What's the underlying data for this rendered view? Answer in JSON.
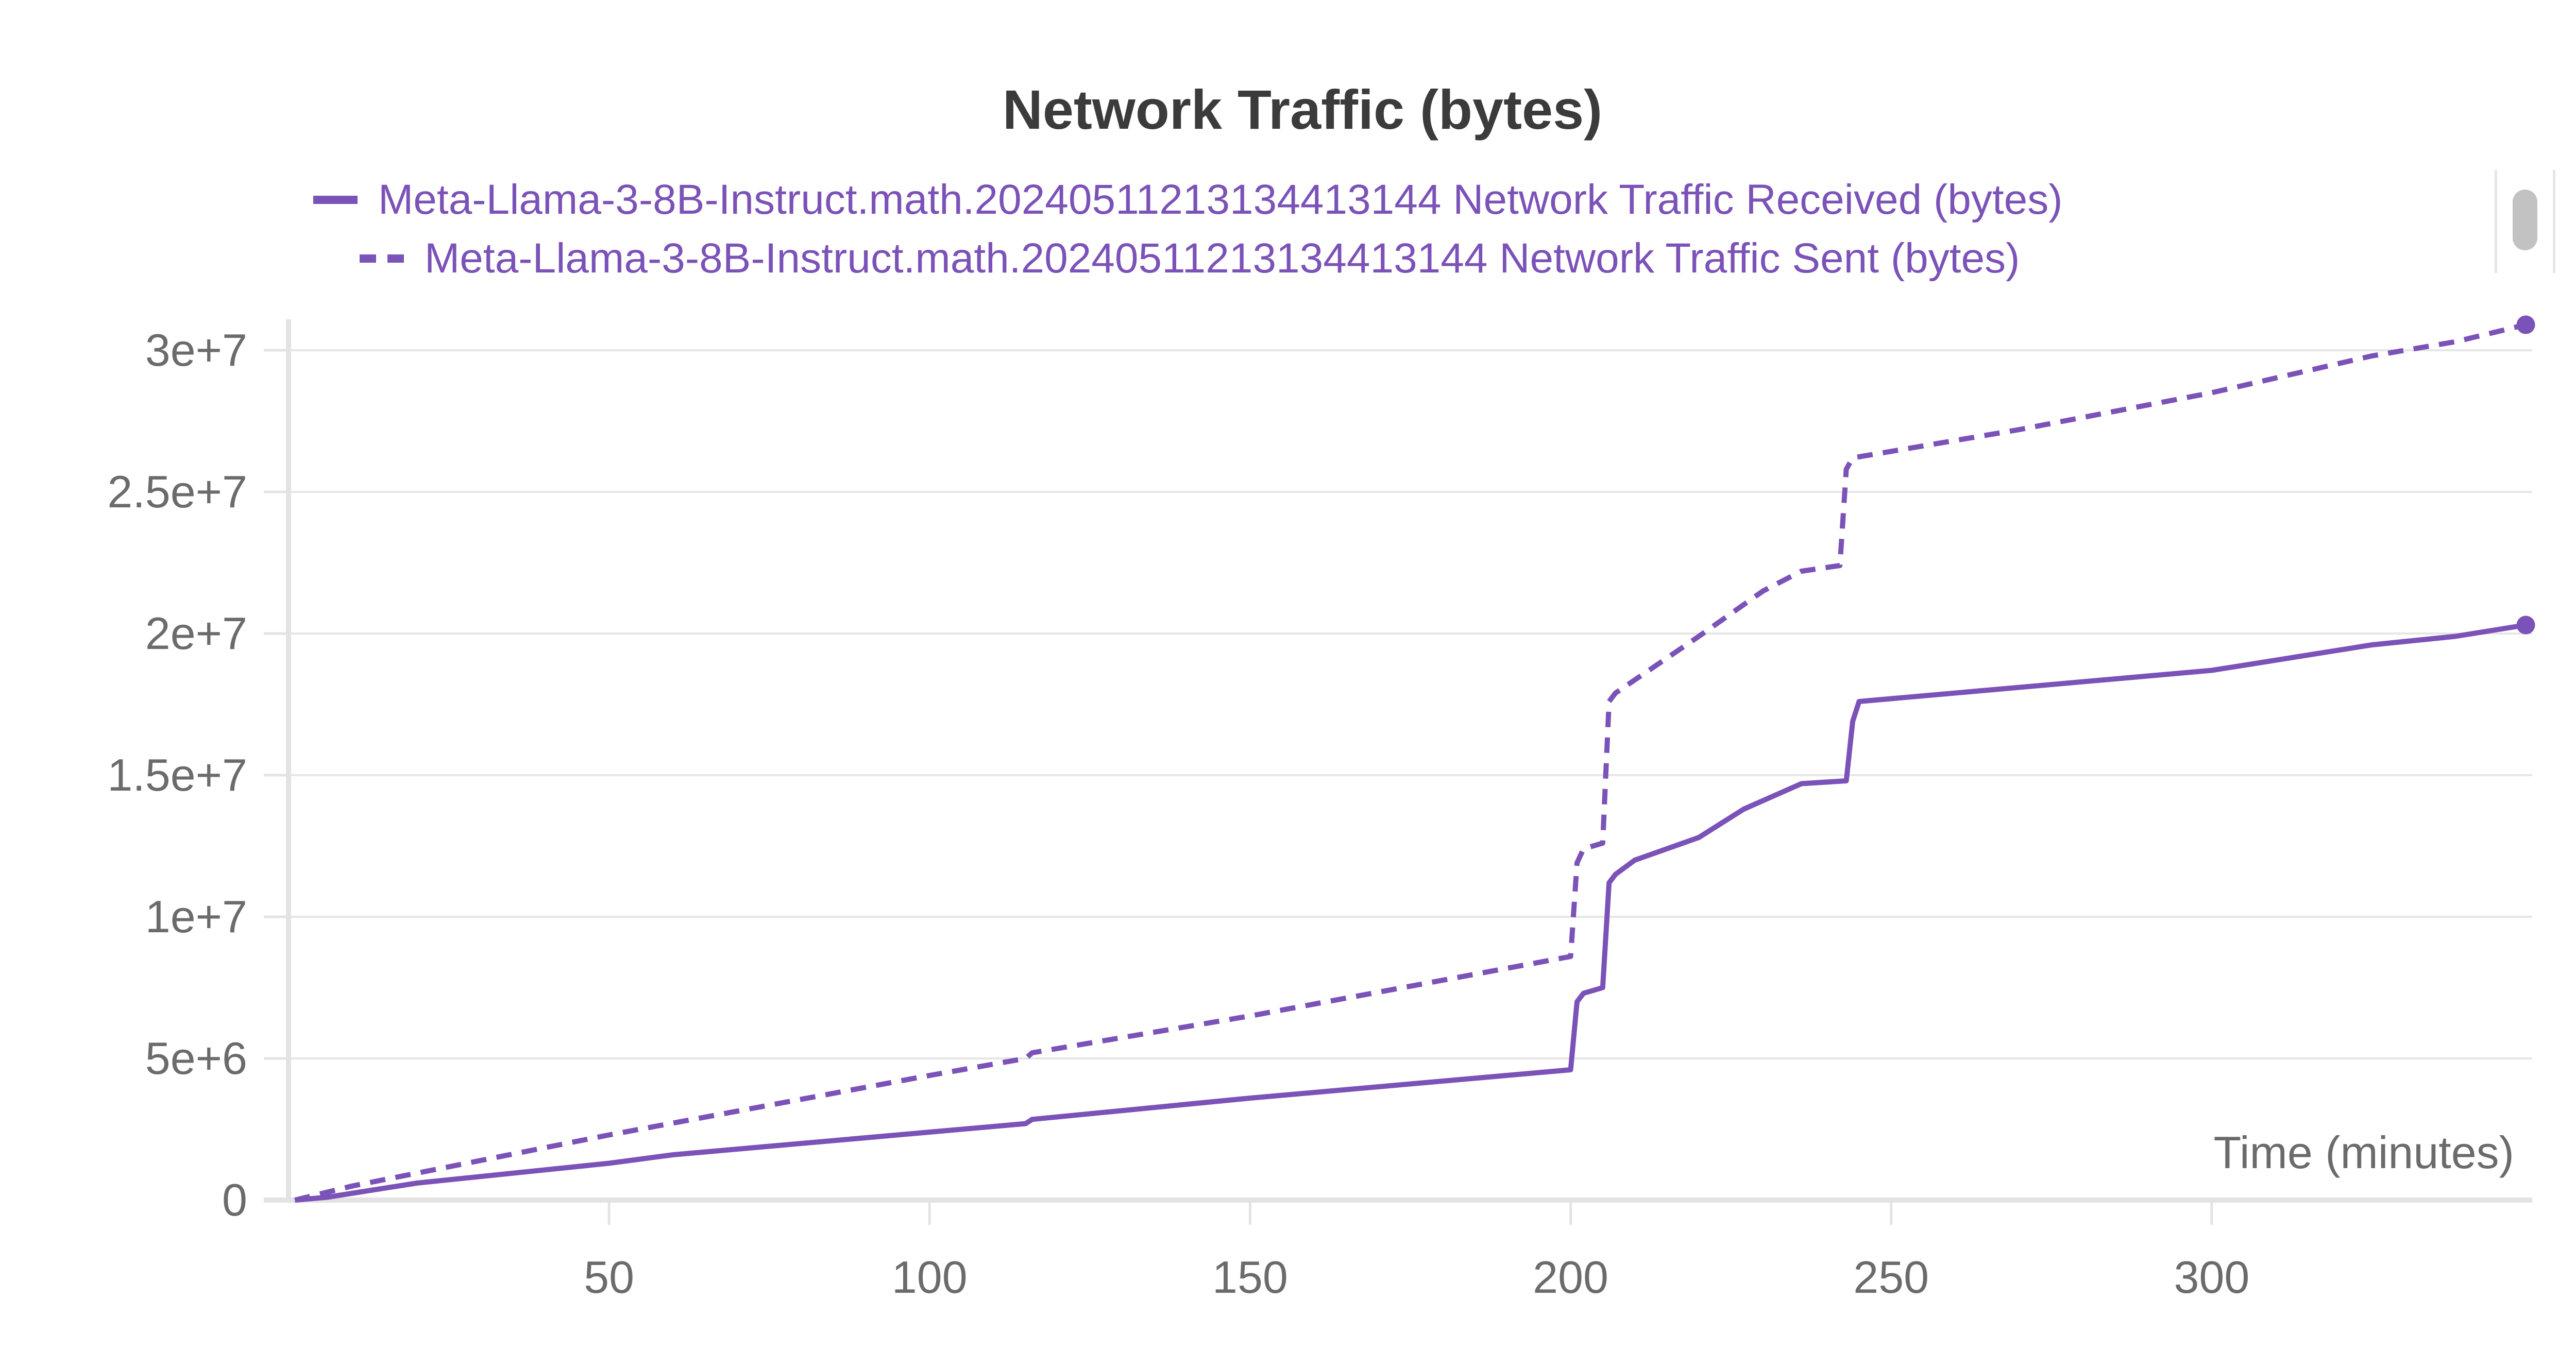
{
  "colors": {
    "series": "#7b52b8",
    "grid": "#e6e6e6",
    "axis": "#e3e3e3",
    "text": "#6b6b6b",
    "title": "#3b3b3b"
  },
  "chart_data": {
    "type": "line",
    "title": "Network Traffic (bytes)",
    "xlabel": "Time (minutes)",
    "ylabel": "",
    "xlim": [
      0,
      350
    ],
    "ylim": [
      0,
      30000000
    ],
    "x_ticks": [
      50,
      100,
      150,
      200,
      250,
      300
    ],
    "x_tick_labels": [
      "50",
      "100",
      "150",
      "200",
      "250",
      "300"
    ],
    "y_ticks": [
      0,
      5000000,
      10000000,
      15000000,
      20000000,
      25000000,
      30000000
    ],
    "y_tick_labels": [
      "0",
      "5e+6",
      "1e+7",
      "1.5e+7",
      "2e+7",
      "2.5e+7",
      "3e+7"
    ],
    "grid": true,
    "legend_position": "top",
    "series": [
      {
        "name": "Meta-Llama-3-8B-Instruct.math.20240511213134413144 Network Traffic Received (bytes)",
        "style": "solid",
        "x": [
          1,
          6,
          20,
          50,
          60,
          100,
          115,
          116,
          150,
          200,
          201,
          202,
          205,
          206,
          207,
          210,
          220,
          227,
          236,
          243,
          244,
          245,
          300,
          325,
          338,
          349
        ],
        "y": [
          0,
          100000,
          600000,
          1300000,
          1600000,
          2400000,
          2700000,
          2850000,
          3600000,
          4600000,
          7000000,
          7300000,
          7500000,
          11200000,
          11500000,
          12000000,
          12800000,
          13800000,
          14700000,
          14800000,
          16900000,
          17600000,
          18700000,
          19600000,
          19900000,
          20300000
        ],
        "end_marker": true
      },
      {
        "name": "Meta-Llama-3-8B-Instruct.math.20240511213134413144 Network Traffic Sent (bytes)",
        "style": "dashed",
        "x": [
          1,
          10,
          50,
          100,
          115,
          116,
          150,
          200,
          201,
          202,
          205,
          206,
          207,
          220,
          230,
          236,
          242,
          243,
          244,
          270,
          300,
          325,
          338,
          349
        ],
        "y": [
          0,
          500000,
          2300000,
          4400000,
          5000000,
          5200000,
          6500000,
          8600000,
          11900000,
          12400000,
          12600000,
          17600000,
          17900000,
          19900000,
          21500000,
          22200000,
          22400000,
          25800000,
          26200000,
          27200000,
          28500000,
          29800000,
          30300000,
          30900000
        ],
        "end_marker": true
      }
    ]
  }
}
